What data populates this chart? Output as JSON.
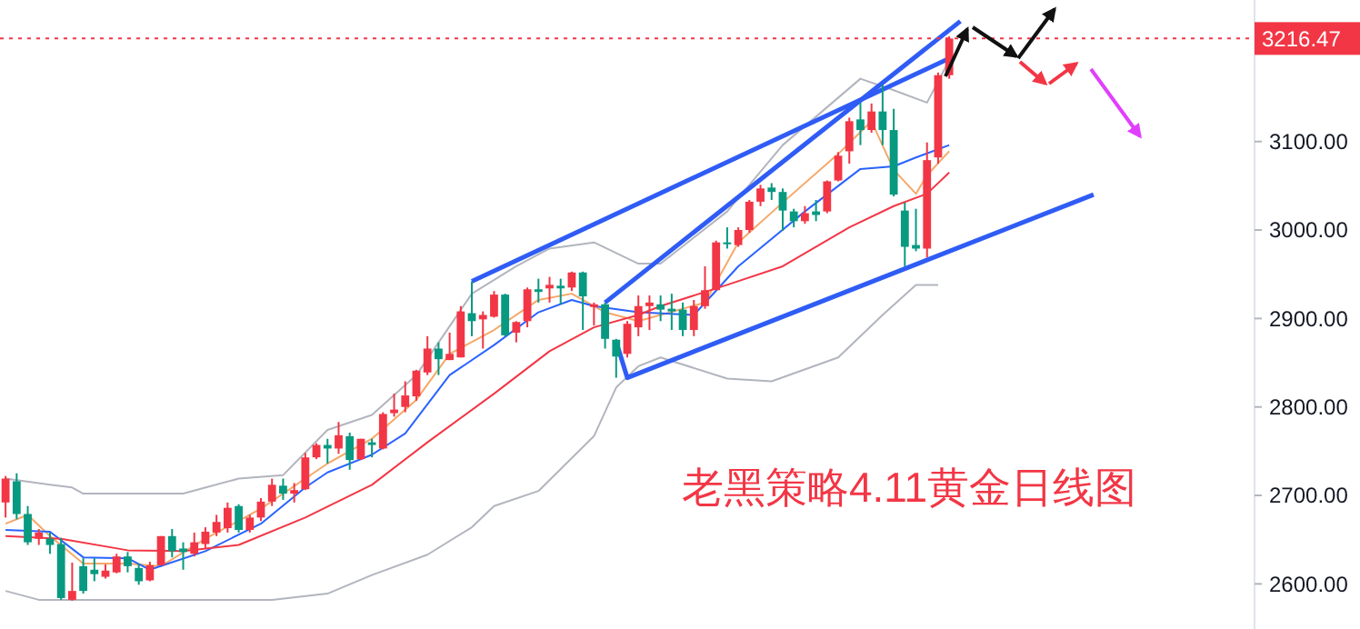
{
  "chart_data": {
    "type": "candlestick",
    "categories": [
      null,
      null,
      null,
      null,
      null,
      null,
      null,
      null,
      null,
      null,
      null,
      null,
      null,
      null,
      null,
      null,
      null,
      null,
      null,
      null,
      null,
      null,
      null,
      null,
      null,
      null,
      null,
      null,
      null,
      null,
      null,
      null,
      null,
      null,
      null,
      null,
      null,
      null,
      null,
      null,
      null,
      null,
      null,
      null,
      null,
      null,
      null,
      null,
      null,
      null,
      null,
      null,
      null,
      null,
      null,
      null,
      null,
      null,
      null,
      null,
      null,
      null,
      null,
      null,
      null,
      null,
      null,
      null,
      null,
      null,
      null,
      null,
      null,
      null,
      null,
      null,
      null,
      null,
      null,
      null,
      null,
      null,
      null,
      null,
      null,
      null,
      null,
      null,
      null,
      null,
      null,
      null,
      null,
      null,
      null,
      null,
      null,
      null,
      null,
      null,
      null,
      null,
      null,
      null,
      null,
      null,
      null,
      null,
      null,
      null,
      null,
      null,
      null
    ],
    "ohlc": [
      [
        2692,
        2722,
        2675,
        2719
      ],
      [
        2716,
        2725,
        2673,
        2679
      ],
      [
        2679,
        2688,
        2644,
        2647
      ],
      [
        2651,
        2662,
        2644,
        2658
      ],
      [
        2651,
        2658,
        2634,
        2644
      ],
      [
        2645,
        2652,
        2582,
        2584
      ],
      [
        2582,
        2624,
        2581,
        2592
      ],
      [
        2620,
        2629,
        2589,
        2592
      ],
      [
        2616,
        2629,
        2603,
        2611
      ],
      [
        2608,
        2622,
        2606,
        2615
      ],
      [
        2613,
        2634,
        2612,
        2631
      ],
      [
        2631,
        2636,
        2613,
        2620
      ],
      [
        2618,
        2623,
        2599,
        2603
      ],
      [
        2604,
        2625,
        2603,
        2621
      ],
      [
        2621,
        2654,
        2621,
        2654
      ],
      [
        2654,
        2662,
        2630,
        2637
      ],
      [
        2640,
        2647,
        2616,
        2636
      ],
      [
        2634,
        2658,
        2631,
        2647
      ],
      [
        2645,
        2664,
        2640,
        2659
      ],
      [
        2658,
        2678,
        2654,
        2670
      ],
      [
        2663,
        2692,
        2658,
        2686
      ],
      [
        2688,
        2690,
        2658,
        2661
      ],
      [
        2661,
        2678,
        2658,
        2675
      ],
      [
        2675,
        2697,
        2671,
        2693
      ],
      [
        2693,
        2719,
        2688,
        2712
      ],
      [
        2711,
        2719,
        2695,
        2702
      ],
      [
        2702,
        2714,
        2692,
        2706
      ],
      [
        2707,
        2748,
        2706,
        2743
      ],
      [
        2743,
        2759,
        2741,
        2757
      ],
      [
        2757,
        2764,
        2736,
        2753
      ],
      [
        2753,
        2783,
        2747,
        2768
      ],
      [
        2767,
        2771,
        2729,
        2740
      ],
      [
        2741,
        2764,
        2740,
        2764
      ],
      [
        2760,
        2764,
        2743,
        2757
      ],
      [
        2753,
        2794,
        2752,
        2792
      ],
      [
        2793,
        2815,
        2789,
        2797
      ],
      [
        2800,
        2829,
        2794,
        2813
      ],
      [
        2812,
        2842,
        2807,
        2841
      ],
      [
        2839,
        2880,
        2836,
        2866
      ],
      [
        2866,
        2873,
        2836,
        2854
      ],
      [
        2853,
        2884,
        2853,
        2860
      ],
      [
        2856,
        2914,
        2856,
        2908
      ],
      [
        2906,
        2942,
        2880,
        2897
      ],
      [
        2899,
        2908,
        2866,
        2904
      ],
      [
        2902,
        2931,
        2901,
        2927
      ],
      [
        2927,
        2928,
        2880,
        2881
      ],
      [
        2884,
        2897,
        2873,
        2896
      ],
      [
        2897,
        2935,
        2890,
        2933
      ],
      [
        2933,
        2945,
        2918,
        2930
      ],
      [
        2934,
        2947,
        2918,
        2938
      ],
      [
        2937,
        2945,
        2916,
        2934
      ],
      [
        2935,
        2953,
        2931,
        2952
      ],
      [
        2952,
        2953,
        2887,
        2925
      ],
      [
        2913,
        2918,
        2892,
        2916
      ],
      [
        2916,
        2918,
        2866,
        2877
      ],
      [
        2876,
        2877,
        2833,
        2857
      ],
      [
        2860,
        2897,
        2856,
        2894
      ],
      [
        2890,
        2926,
        2880,
        2914
      ],
      [
        2914,
        2926,
        2887,
        2918
      ],
      [
        2916,
        2926,
        2897,
        2910
      ],
      [
        2911,
        2928,
        2887,
        2908
      ],
      [
        2910,
        2918,
        2880,
        2887
      ],
      [
        2887,
        2921,
        2880,
        2914
      ],
      [
        2914,
        2959,
        2911,
        2932
      ],
      [
        2932,
        2988,
        2932,
        2986
      ],
      [
        2986,
        3003,
        2979,
        2984
      ],
      [
        2983,
        3003,
        2981,
        3000
      ],
      [
        3000,
        3034,
        2997,
        3032
      ],
      [
        3032,
        3051,
        3027,
        3047
      ],
      [
        3048,
        3053,
        3034,
        3043
      ],
      [
        3043,
        3047,
        2999,
        3022
      ],
      [
        3021,
        3024,
        3003,
        3010
      ],
      [
        3010,
        3027,
        3007,
        3019
      ],
      [
        3021,
        3034,
        3010,
        3017
      ],
      [
        3021,
        3056,
        3019,
        3055
      ],
      [
        3056,
        3088,
        3055,
        3084
      ],
      [
        3089,
        3127,
        3075,
        3123
      ],
      [
        3125,
        3144,
        3096,
        3113
      ],
      [
        3113,
        3143,
        3110,
        3134
      ],
      [
        3134,
        3164,
        3096,
        3113
      ],
      [
        3113,
        3137,
        3038,
        3040
      ],
      [
        3022,
        3031,
        2959,
        2981
      ],
      [
        2983,
        3024,
        2976,
        2979
      ],
      [
        2979,
        3099,
        2969,
        3079
      ],
      [
        3082,
        3178,
        3075,
        3175
      ],
      [
        3175,
        3219,
        3171,
        3216.47
      ],
      null,
      null,
      null,
      null,
      null,
      null,
      null,
      null,
      null,
      null,
      null,
      null,
      null,
      null,
      null,
      null,
      null,
      null,
      null,
      null,
      null,
      null,
      null,
      null,
      null,
      null,
      null
    ],
    "series": [
      {
        "type": "line",
        "color": "#f5a86a",
        "values": [
          2668,
          null,
          2678,
          null,
          2654,
          null,
          null,
          2623,
          null,
          null,
          null,
          2623,
          null,
          null,
          2620,
          null,
          null,
          null,
          2651,
          null,
          null,
          null,
          null,
          2685,
          null,
          null,
          null,
          2719,
          null,
          2736,
          null,
          null,
          null,
          2764,
          null,
          null,
          null,
          2808,
          null,
          null,
          2860,
          null,
          null,
          null,
          2887,
          null,
          null,
          null,
          2921,
          null,
          null,
          2928,
          null,
          null,
          2907,
          null,
          null,
          2897,
          null,
          2904,
          null,
          null,
          null,
          2918,
          null,
          null,
          2986,
          null,
          null,
          null,
          3031,
          null,
          null,
          null,
          null,
          3086,
          null,
          null,
          3123,
          null,
          3068,
          null,
          3041,
          3062,
          null,
          3089,
          null,
          null,
          null,
          null,
          null,
          null,
          null,
          null,
          null,
          null,
          null,
          null,
          null,
          null,
          null,
          null,
          null,
          null,
          null,
          null,
          null,
          null,
          null,
          null,
          null,
          null,
          null
        ]
      },
      {
        "type": "line",
        "color": "#2962ff",
        "values": [
          2661,
          null,
          null,
          null,
          2659,
          null,
          null,
          2630,
          null,
          null,
          null,
          2629,
          null,
          2616,
          null,
          null,
          null,
          null,
          2637,
          null,
          null,
          null,
          null,
          2668,
          null,
          null,
          null,
          2709,
          null,
          2726,
          null,
          null,
          null,
          2746,
          null,
          null,
          2770,
          null,
          null,
          null,
          2836,
          null,
          null,
          null,
          2870,
          null,
          null,
          null,
          2907,
          null,
          null,
          2921,
          null,
          2914,
          null,
          null,
          null,
          2907,
          null,
          null,
          null,
          null,
          2904,
          null,
          null,
          null,
          2959,
          null,
          null,
          null,
          null,
          null,
          3021,
          null,
          null,
          null,
          null,
          3069,
          null,
          null,
          3072,
          null,
          3082,
          null,
          null,
          3096,
          null,
          null,
          null,
          null,
          null,
          null,
          null,
          null,
          null,
          null,
          null,
          null,
          null,
          null,
          null,
          null,
          null,
          null,
          null,
          null,
          null,
          null,
          null,
          null,
          null,
          null,
          null
        ]
      },
      {
        "type": "line",
        "color": "#f23645",
        "values": [
          2654,
          null,
          null,
          null,
          null,
          2651,
          null,
          null,
          null,
          null,
          null,
          2638,
          null,
          null,
          null,
          null,
          2637,
          null,
          null,
          null,
          null,
          2644,
          null,
          null,
          null,
          null,
          null,
          2675,
          null,
          null,
          null,
          null,
          null,
          2712,
          null,
          null,
          null,
          null,
          2760,
          null,
          null,
          null,
          null,
          null,
          2815,
          null,
          null,
          null,
          null,
          2863,
          null,
          null,
          null,
          2890,
          null,
          null,
          null,
          2904,
          null,
          2914,
          null,
          null,
          null,
          null,
          null,
          2938,
          null,
          null,
          null,
          null,
          2959,
          null,
          null,
          null,
          null,
          null,
          3003,
          null,
          null,
          null,
          3027,
          null,
          null,
          3041,
          null,
          3065,
          null,
          null,
          null,
          null,
          null,
          null,
          null,
          null,
          null,
          null,
          null,
          null,
          null,
          null,
          null,
          null,
          null,
          null,
          null,
          null,
          null,
          null,
          null,
          null,
          null,
          null,
          null
        ]
      },
      {
        "type": "line",
        "color": "#b2b5be",
        "values": [
          2719,
          null,
          null,
          null,
          2712,
          null,
          2709,
          2702,
          null,
          null,
          null,
          null,
          null,
          null,
          null,
          null,
          2702,
          null,
          null,
          null,
          null,
          2719,
          null,
          null,
          null,
          2723,
          null,
          null,
          null,
          2774,
          null,
          null,
          null,
          2791,
          null,
          null,
          null,
          2836,
          null,
          null,
          null,
          null,
          2928,
          null,
          null,
          null,
          2959,
          null,
          null,
          2979,
          null,
          null,
          null,
          2986,
          null,
          null,
          null,
          2962,
          null,
          2962,
          null,
          null,
          null,
          null,
          null,
          3021,
          null,
          null,
          null,
          null,
          3096,
          null,
          null,
          null,
          null,
          null,
          null,
          3171,
          null,
          null,
          3158,
          null,
          null,
          3144,
          null,
          3192,
          null,
          null,
          null,
          null,
          null,
          null,
          null,
          null,
          null,
          null,
          null,
          null,
          null,
          null,
          null,
          null,
          null,
          null,
          null,
          null,
          null,
          null,
          null,
          null,
          null,
          null,
          null
        ]
      },
      {
        "type": "line",
        "color": "#b2b5be",
        "values": [
          2592,
          null,
          null,
          2582,
          null,
          null,
          null,
          null,
          null,
          null,
          null,
          null,
          null,
          null,
          null,
          null,
          2582,
          null,
          null,
          null,
          null,
          null,
          null,
          null,
          2582,
          null,
          null,
          null,
          null,
          2589,
          null,
          null,
          null,
          2610,
          null,
          null,
          null,
          null,
          2633,
          null,
          null,
          null,
          2664,
          null,
          2688,
          null,
          null,
          null,
          2705,
          null,
          null,
          null,
          null,
          2767,
          null,
          2822,
          null,
          2846,
          null,
          2856,
          null,
          null,
          null,
          null,
          null,
          2832,
          null,
          null,
          null,
          2829,
          null,
          null,
          null,
          null,
          null,
          2856,
          null,
          null,
          null,
          2904,
          null,
          null,
          2938,
          null,
          2938,
          null,
          null,
          null,
          null,
          null,
          null,
          null,
          null,
          null,
          null,
          null,
          null,
          null,
          null,
          null,
          null,
          null,
          null,
          null,
          null,
          null,
          null,
          null,
          null,
          null,
          null,
          null,
          null
        ]
      },
      {
        "type": "line",
        "color": "#2f5cf5",
        "values": [
          null,
          null,
          null,
          null,
          null,
          null,
          null,
          null,
          null,
          null,
          null,
          null,
          null,
          null,
          null,
          null,
          null,
          null,
          null,
          null,
          null,
          null,
          null,
          null,
          null,
          null,
          null,
          null,
          null,
          null,
          null,
          null,
          null,
          null,
          null,
          null,
          null,
          null,
          null,
          null,
          null,
          null,
          2942,
          null,
          null,
          null,
          null,
          null,
          null,
          null,
          null,
          null,
          null,
          null,
          null,
          null,
          null,
          null,
          null,
          null,
          null,
          null,
          null,
          null,
          null,
          null,
          null,
          null,
          null,
          null,
          null,
          null,
          null,
          null,
          null,
          null,
          null,
          null,
          null,
          null,
          null,
          null,
          null,
          null,
          null,
          3194,
          null,
          null,
          null,
          null,
          null,
          null,
          null,
          null,
          null,
          null,
          null,
          null,
          null,
          null,
          null,
          null,
          null,
          null,
          null,
          null,
          null,
          null,
          null,
          null,
          null,
          null,
          null
        ]
      },
      {
        "type": "line",
        "color": "#2f5cf5",
        "values": [
          null,
          null,
          null,
          null,
          null,
          null,
          null,
          null,
          null,
          null,
          null,
          null,
          null,
          null,
          null,
          null,
          null,
          null,
          null,
          null,
          null,
          null,
          null,
          null,
          null,
          null,
          null,
          null,
          null,
          null,
          null,
          null,
          null,
          null,
          null,
          null,
          null,
          null,
          null,
          null,
          null,
          null,
          null,
          null,
          null,
          null,
          null,
          null,
          null,
          null,
          null,
          null,
          null,
          null,
          2918,
          null,
          null,
          null,
          null,
          null,
          null,
          null,
          null,
          null,
          null,
          null,
          null,
          null,
          null,
          null,
          null,
          null,
          null,
          null,
          null,
          null,
          null,
          null,
          null,
          null,
          null,
          null,
          null,
          null,
          null,
          null,
          3236,
          null,
          null,
          null,
          null,
          null,
          null,
          null,
          null,
          null,
          null,
          null,
          null,
          null,
          null,
          null,
          null,
          null,
          null,
          null,
          null,
          null,
          null,
          null,
          null,
          null,
          null
        ]
      },
      {
        "type": "line",
        "color": "#2f5cf5",
        "values": [
          null,
          null,
          null,
          null,
          null,
          null,
          null,
          null,
          null,
          null,
          null,
          null,
          null,
          null,
          null,
          null,
          null,
          null,
          null,
          null,
          null,
          null,
          null,
          null,
          null,
          null,
          null,
          null,
          null,
          null,
          null,
          null,
          null,
          null,
          null,
          null,
          null,
          null,
          null,
          null,
          null,
          null,
          null,
          null,
          null,
          null,
          null,
          null,
          null,
          null,
          null,
          null,
          null,
          null,
          null,
          2874,
          2833,
          null,
          null,
          null,
          null,
          null,
          null,
          null,
          null,
          null,
          null,
          null,
          null,
          null,
          null,
          null,
          null,
          null,
          null,
          null,
          null,
          null,
          null,
          null,
          null,
          null,
          null,
          null,
          null,
          null,
          null,
          null,
          null,
          null,
          null,
          null,
          null,
          null,
          null,
          null,
          null,
          null,
          3040,
          null,
          null,
          null,
          null,
          null,
          null,
          null,
          null,
          null,
          null,
          null,
          null,
          null,
          null
        ]
      }
    ],
    "ylim": [
      2549,
      3260
    ],
    "yticks": [
      {
        "value": 2600,
        "label": "2600.00"
      },
      {
        "value": 2700,
        "label": "2700.00"
      },
      {
        "value": 2800,
        "label": "2800.00"
      },
      {
        "value": 2900,
        "label": "2900.00"
      },
      {
        "value": 3000,
        "label": "3000.00"
      },
      {
        "value": 3100,
        "label": "3100.00"
      }
    ],
    "tick_labels": "y",
    "ref_lines": [
      {
        "axis": "y",
        "value": 3216.47,
        "label": "3216.47",
        "color": "#f23645",
        "line_style": "dotted"
      }
    ],
    "annotations": [
      "老黑策略4.11黄金日线图"
    ]
  }
}
